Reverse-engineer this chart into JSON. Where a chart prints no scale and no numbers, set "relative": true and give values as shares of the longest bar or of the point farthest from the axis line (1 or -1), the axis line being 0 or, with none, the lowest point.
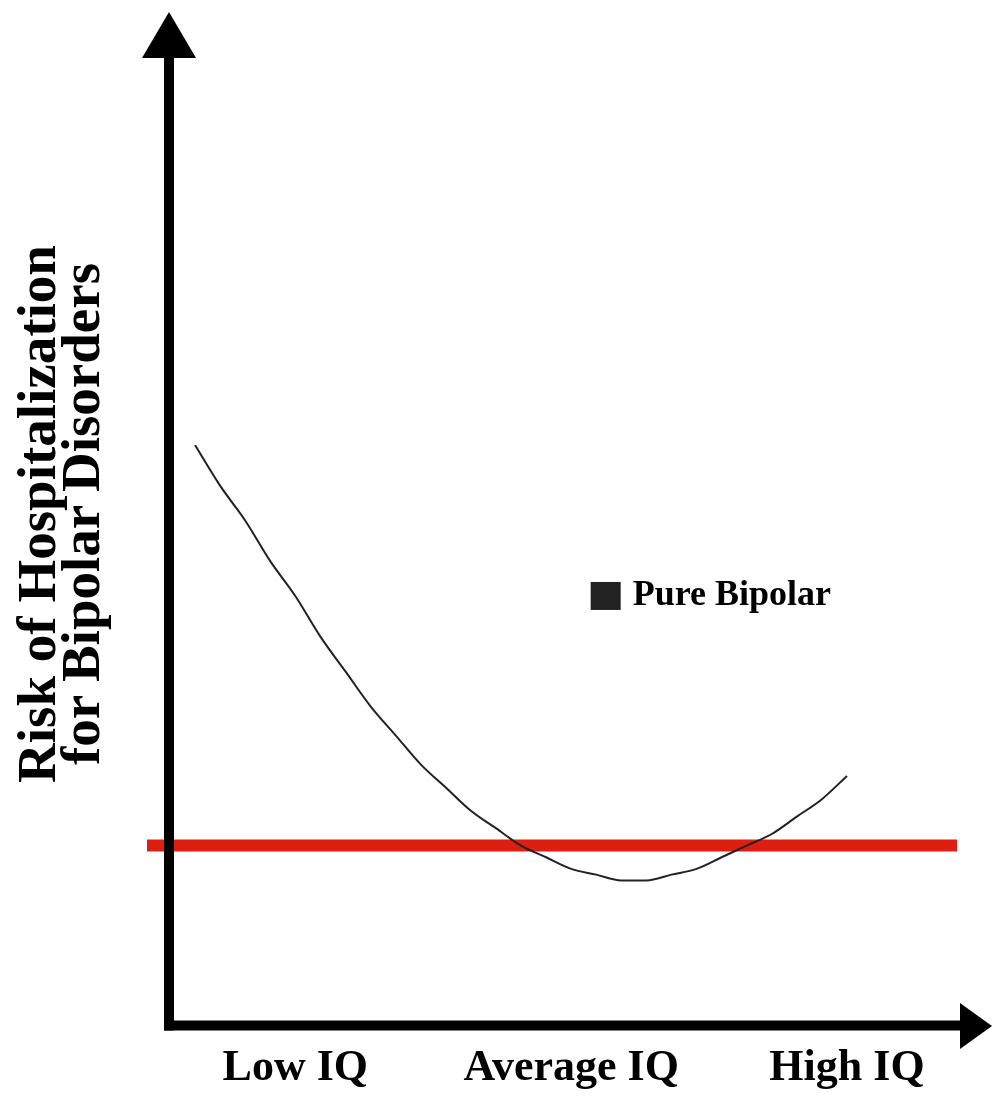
{
  "chart_data": {
    "type": "line",
    "relative": true,
    "ylabel": "Risk of Hospitalization\nfor Bipolar Disorders",
    "categories": [
      null,
      null,
      null,
      null,
      "Low IQ",
      null,
      null,
      null,
      null,
      null,
      null,
      null,
      null,
      null,
      null,
      "Average IQ",
      null,
      null,
      null,
      null,
      null,
      null,
      null,
      null,
      null,
      null,
      "High IQ"
    ],
    "series": [
      {
        "name": "Pure Bipolar",
        "color": "#222222",
        "values": [
          1,
          0.93,
          0.87,
          0.8,
          0.74,
          0.67,
          0.61,
          0.55,
          0.5,
          0.45,
          0.41,
          0.37,
          0.34,
          0.31,
          0.29,
          0.27,
          0.26,
          0.25,
          0.25,
          0.26,
          0.27,
          0.29,
          0.31,
          0.33,
          0.36,
          0.39,
          0.43
        ]
      }
    ],
    "ref_lines": [
      {
        "axis": "y",
        "value": 0.31,
        "color": "#dc1f10"
      }
    ],
    "legend": "right",
    "marker": "none",
    "line_style": "solid",
    "grid": false
  }
}
